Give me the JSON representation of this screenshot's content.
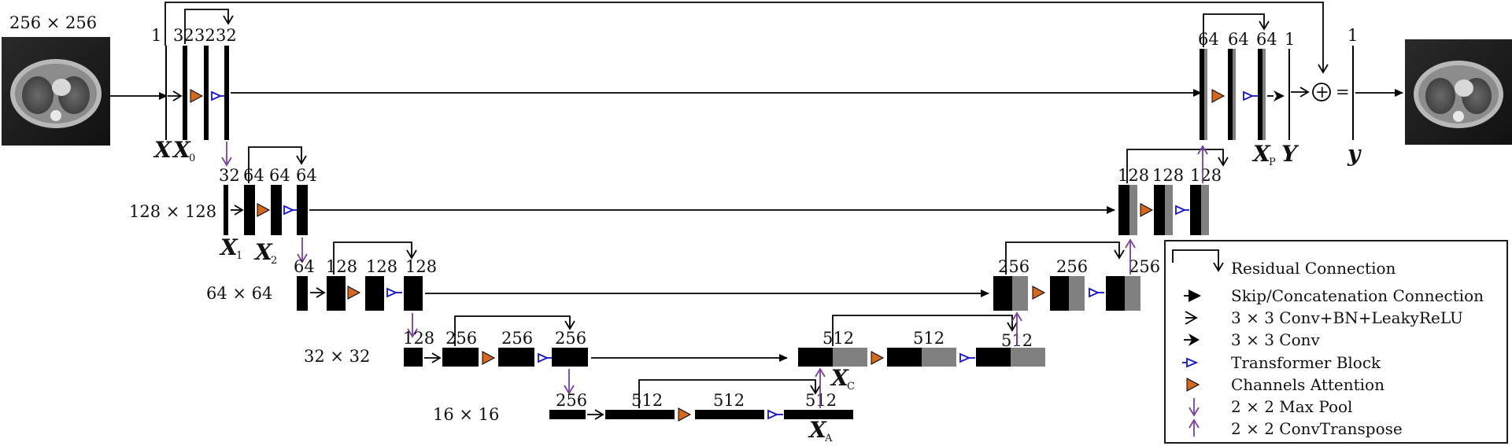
{
  "images": {
    "input_label": "256 × 256",
    "input_alt": "input CT slice",
    "output_alt": "output CT slice"
  },
  "resolutions": [
    "128 × 128",
    "64 × 64",
    "32 × 32",
    "16 × 16"
  ],
  "channels": {
    "level0_input": "1",
    "level0": [
      "32",
      "32",
      "32"
    ],
    "level1": [
      "32",
      "64",
      "64",
      "64"
    ],
    "level2": [
      "64",
      "128",
      "128",
      "128"
    ],
    "level3": [
      "128",
      "256",
      "256",
      "256"
    ],
    "bottleneck": [
      "256",
      "512",
      "512",
      "512"
    ],
    "dec3": [
      "512",
      "512",
      "512"
    ],
    "dec2": [
      "256",
      "256",
      "256"
    ],
    "dec1": [
      "128",
      "128",
      "128"
    ],
    "dec0": [
      "64",
      "64",
      "64",
      "1"
    ],
    "final": "1"
  },
  "variables": {
    "X": "X",
    "X0": {
      "base": "X",
      "sub": "0"
    },
    "X1": {
      "base": "X",
      "sub": "1"
    },
    "X2": {
      "base": "X",
      "sub": "2"
    },
    "XA": {
      "base": "X",
      "sub": "A"
    },
    "XC": {
      "base": "X",
      "sub": "C"
    },
    "XP": {
      "base": "X",
      "sub": "P"
    },
    "Y": "Y",
    "y": "y"
  },
  "operators": {
    "plus": "+",
    "equals": "="
  },
  "legend": [
    {
      "icon": "residual-connection-icon",
      "label": "Residual Connection"
    },
    {
      "icon": "skip-connection-arrow-icon",
      "label": "Skip/Concatenation Connection"
    },
    {
      "icon": "conv-bn-leakyrelu-arrow-icon",
      "label": "3 × 3  Conv+BN+LeakyReLU"
    },
    {
      "icon": "conv-arrow-icon",
      "label": "3 × 3  Conv"
    },
    {
      "icon": "transformer-block-arrow-icon",
      "label": "Transformer Block"
    },
    {
      "icon": "channels-attention-arrow-icon",
      "label": "Channels Attention"
    },
    {
      "icon": "max-pool-arrow-icon",
      "label": "2 × 2  Max Pool"
    },
    {
      "icon": "conv-transpose-arrow-icon",
      "label": "2 × 2 ConvTranspose"
    }
  ],
  "colors": {
    "block": "#000000",
    "concat": "#808080",
    "attention": "#D2691E",
    "transformer": "#1515CC",
    "pool": "#7B3FA0"
  }
}
